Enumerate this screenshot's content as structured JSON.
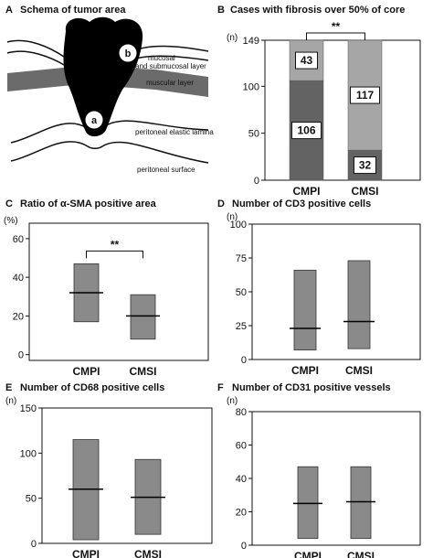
{
  "panel_a": {
    "letter": "A",
    "title": "Schema of tumor area",
    "labels": {
      "mucosal": "mucosal",
      "submucosal": "and submucosal layer",
      "muscular": "muscular layer",
      "elastic": "peritoneal elastic lamina",
      "surface": "peritoneal surface",
      "site_a": "a",
      "site_b": "b"
    }
  },
  "chart_data": [
    {
      "panel": "B",
      "type": "bar",
      "stacked": true,
      "title": "Cases with fibrosis over 50% of core",
      "unit": "(n)",
      "categories": [
        "CMPI",
        "CMSI"
      ],
      "series": [
        {
          "values": [
            106,
            32
          ],
          "labels": [
            "106",
            "32"
          ],
          "color": "#636363"
        },
        {
          "values": [
            43,
            117
          ],
          "labels": [
            "43",
            "117"
          ],
          "color": "#a6a6a6"
        }
      ],
      "ylim": [
        0,
        149
      ],
      "yticks": [
        "0",
        "50",
        "100",
        "149"
      ],
      "annotation": "**"
    },
    {
      "panel": "C",
      "type": "bar",
      "title": "Ratio of α-SMA positive area",
      "unit": "(%)",
      "categories": [
        "CMPI",
        "CMSI"
      ],
      "ranges": [
        [
          17,
          47
        ],
        [
          8,
          31
        ]
      ],
      "medians": [
        32,
        20
      ],
      "ylim": [
        -3,
        68
      ],
      "yticks": [
        "0",
        "20",
        "40",
        "60"
      ],
      "annotation": "**",
      "color": "#8a8a8a"
    },
    {
      "panel": "D",
      "type": "bar",
      "title": "Number of CD3 positive cells",
      "unit": "(n)",
      "categories": [
        "CMPI",
        "CMSI"
      ],
      "ranges": [
        [
          7,
          66
        ],
        [
          8,
          73
        ]
      ],
      "medians": [
        23,
        28
      ],
      "ylim": [
        0,
        100
      ],
      "yticks": [
        "0",
        "25",
        "50",
        "75",
        "100"
      ],
      "color": "#8a8a8a"
    },
    {
      "panel": "E",
      "type": "bar",
      "title": "Number of CD68 positive cells",
      "unit": "(n)",
      "categories": [
        "CMPI",
        "CMSI"
      ],
      "ranges": [
        [
          4,
          115
        ],
        [
          10,
          93
        ]
      ],
      "medians": [
        60,
        51
      ],
      "ylim": [
        0,
        150
      ],
      "yticks": [
        "0",
        "50",
        "100",
        "150"
      ],
      "color": "#8a8a8a"
    },
    {
      "panel": "F",
      "type": "bar",
      "title": "Number of CD31 positive vessels",
      "unit": "(n)",
      "categories": [
        "CMPI",
        "CMSI"
      ],
      "ranges": [
        [
          4,
          47
        ],
        [
          4,
          47
        ]
      ],
      "medians": [
        25,
        26
      ],
      "ylim": [
        0,
        80
      ],
      "yticks": [
        "0",
        "20",
        "40",
        "60",
        "80"
      ],
      "color": "#8a8a8a"
    }
  ]
}
